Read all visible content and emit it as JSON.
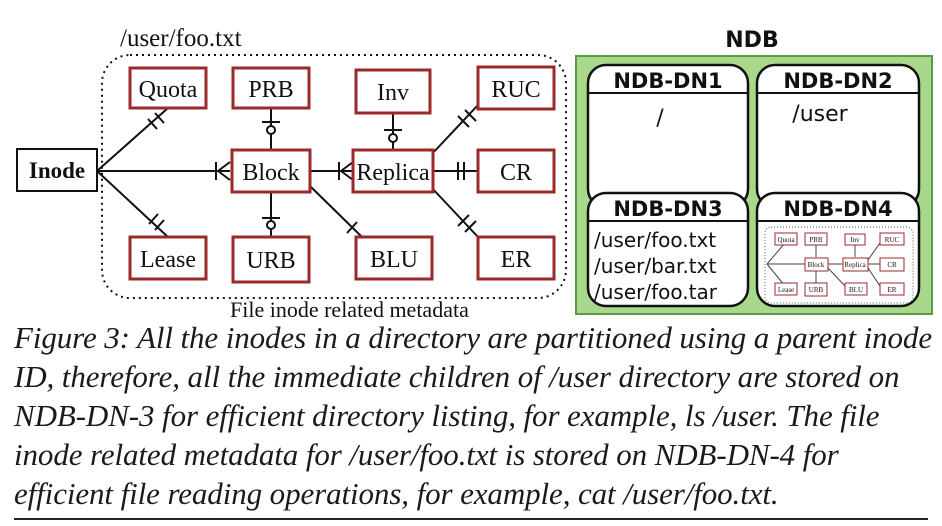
{
  "diagram": {
    "path_label": "/user/foo.txt",
    "group_label": "File inode related metadata",
    "inode_label": "Inode",
    "entities": {
      "quota": "Quota",
      "prb": "PRB",
      "inv": "Inv",
      "ruc": "RUC",
      "block": "Block",
      "replica": "Replica",
      "cr": "CR",
      "lease": "Lease",
      "urb": "URB",
      "blu": "BLU",
      "er": "ER"
    }
  },
  "ndb": {
    "title": "NDB",
    "nodes": [
      {
        "name": "NDB-DN1",
        "content": [
          "/"
        ]
      },
      {
        "name": "NDB-DN2",
        "content": [
          "/user"
        ]
      },
      {
        "name": "NDB-DN3",
        "content": [
          "/user/foo.txt",
          "/user/bar.txt",
          "/user/foo.tar"
        ]
      },
      {
        "name": "NDB-DN4",
        "content": []
      }
    ]
  },
  "caption": {
    "text": "Figure 3: All the inodes in a directory are partitioned using a parent inode ID, therefore, all the immediate children of /user directory are stored on NDB-DN-3 for efficient directory listing, for example, ls /user. The file inode related metadata for /user/foo.txt is stored on NDB-DN-4 for efficient file reading operations, for example, cat /user/foo.txt."
  },
  "colors": {
    "entity_border": "#9a2a2a",
    "ndb_fill": "#a8d98a",
    "ndb_border": "#5a9a4a"
  }
}
